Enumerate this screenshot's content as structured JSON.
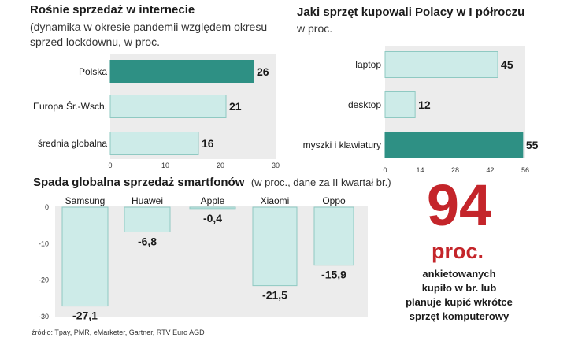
{
  "colors": {
    "highlight_fill": "#2e9084",
    "bar_fill": "#cdebe8",
    "bar_stroke": "#8fc9c2",
    "panel_bg": "#ececec",
    "accent_red": "#c4252a",
    "axis": "#999999"
  },
  "chart_data": [
    {
      "id": "internet-sales",
      "type": "bar",
      "orientation": "horizontal",
      "title": "Rośnie sprzedaż w internecie",
      "subtitle_lines": [
        "(dynamika w okresie pandemii względem okresu",
        "sprzed lockdownu, w proc."
      ],
      "categories": [
        "Polska",
        "Europa Śr.-Wsch.",
        "średnia globalna"
      ],
      "values": [
        26,
        21,
        16
      ],
      "value_labels": [
        "26",
        "21",
        "16"
      ],
      "highlight": [
        true,
        false,
        false
      ],
      "xlim": [
        0,
        30
      ],
      "ticks": [
        "0",
        "10",
        "20",
        "30"
      ],
      "grid": false
    },
    {
      "id": "hardware-purchases",
      "type": "bar",
      "orientation": "horizontal",
      "title": "Jaki sprzęt kupowali Polacy w I półroczu",
      "subtitle_lines": [
        "w proc."
      ],
      "categories": [
        "laptop",
        "desktop",
        "myszki i klawiatury"
      ],
      "values": [
        45,
        12,
        55
      ],
      "value_labels": [
        "45",
        "12",
        "55"
      ],
      "highlight": [
        false,
        false,
        true
      ],
      "xlim": [
        0,
        56
      ],
      "ticks": [
        "0",
        "14",
        "28",
        "42",
        "56"
      ],
      "grid": false
    },
    {
      "id": "smartphone-sales",
      "type": "bar",
      "orientation": "vertical",
      "title": "Spada globalna sprzedaż smartfonów",
      "title_note": "(w proc., dane za II kwartał br.)",
      "categories": [
        "Samsung",
        "Huawei",
        "Apple",
        "Xiaomi",
        "Oppo"
      ],
      "values": [
        -27.1,
        -6.8,
        -0.4,
        -21.5,
        -15.9
      ],
      "value_labels": [
        "-27,1",
        "-6,8",
        "-0,4",
        "-21,5",
        "-15,9"
      ],
      "ylim": [
        -30,
        0
      ],
      "ticks": [
        "0",
        "-10",
        "-20",
        "-30"
      ],
      "grid": false
    }
  ],
  "callout": {
    "number": "94",
    "unit": "proc.",
    "lines": [
      "ankietowanych",
      "kupiło w br. lub",
      "planuje kupić wkrótce",
      "sprzęt komputerowy"
    ]
  },
  "source": "źródło: Tpay, PMR, eMarketer, Gartner, RTV Euro AGD"
}
